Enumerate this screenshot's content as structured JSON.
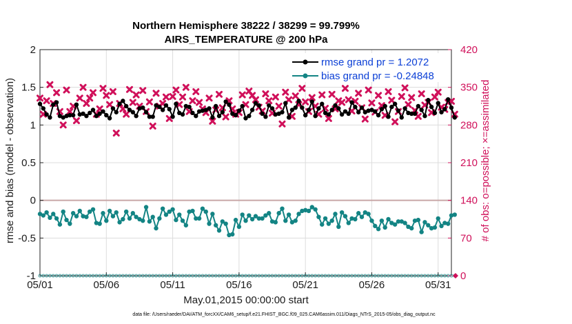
{
  "chart_data": {
    "type": "line",
    "title": "Northern Hemisphere 38222 / 38299 = 99.799%",
    "subtitle": "AIRS_TEMPERATURE @ 200 hPa",
    "xlabel": "May.01,2015 00:00:00 start",
    "ylabel": "rmse and bias (model - observation)",
    "y2label": "# of obs: o=possible; ×=assimilated",
    "x_ticklabels": [
      "05/01",
      "05/06",
      "05/11",
      "05/16",
      "05/21",
      "05/26",
      "05/31"
    ],
    "x_tick_days": [
      0,
      5,
      10,
      15,
      20,
      25,
      30
    ],
    "xlim": [
      0,
      31
    ],
    "ylim": [
      -1,
      2
    ],
    "y_ticklabels": [
      "2",
      "1.5",
      "1",
      "0.5",
      "0",
      "-0.5",
      "-1"
    ],
    "y2lim": [
      0,
      420
    ],
    "y2_ticklabels": [
      "420",
      "350",
      "280",
      "210",
      "140",
      "70",
      "0"
    ],
    "grid": true,
    "legend_position": "top-right",
    "footer": "data file: /Users/raeder/DAI/ATM_forcXX/CAM6_setup/f.e21.FHIST_BGC.f09_025.CAM6assim.011/Diags_NTrS_2015-05/obs_diag_output.nc",
    "series": [
      {
        "name": "rmse grand pr = 1.2072",
        "color": "#000000",
        "step_days": 0.25,
        "values": [
          1.28,
          1.22,
          1.14,
          1.1,
          1.27,
          1.3,
          1.12,
          1.1,
          1.12,
          1.13,
          1.13,
          1.27,
          1.14,
          1.15,
          1.12,
          1.16,
          1.2,
          1.12,
          1.15,
          1.18,
          1.13,
          1.09,
          1.22,
          1.17,
          1.28,
          1.32,
          1.25,
          1.2,
          1.17,
          1.12,
          1.22,
          1.23,
          1.17,
          1.11,
          1.11,
          1.26,
          1.24,
          1.2,
          1.26,
          1.21,
          1.11,
          1.28,
          1.16,
          1.14,
          1.25,
          1.24,
          1.16,
          1.12,
          1.18,
          1.19,
          1.2,
          1.22,
          1.1,
          1.25,
          1.12,
          1.17,
          1.31,
          1.27,
          1.15,
          1.13,
          1.19,
          1.25,
          1.09,
          1.12,
          1.2,
          1.29,
          1.26,
          1.15,
          1.11,
          1.26,
          1.22,
          1.14,
          1.15,
          1.17,
          1.29,
          1.1,
          1.2,
          1.23,
          1.32,
          1.23,
          1.13,
          1.2,
          1.31,
          1.12,
          1.22,
          1.28,
          1.16,
          1.14,
          1.2,
          1.26,
          1.22,
          1.14,
          1.18,
          1.15,
          1.3,
          1.24,
          1.17,
          1.23,
          1.17,
          1.19,
          1.2,
          1.18,
          1.13,
          1.21,
          1.25,
          1.11,
          1.24,
          1.28,
          1.19,
          1.1,
          1.22,
          1.16,
          1.15,
          1.15,
          1.25,
          1.2,
          1.12,
          1.33,
          1.24,
          1.16,
          1.29,
          1.17,
          1.21,
          1.34,
          1.23,
          1.1
        ]
      },
      {
        "name": "bias grand pr = -0.24848",
        "color": "#138484",
        "step_days": 0.25,
        "values": [
          -0.18,
          -0.2,
          -0.16,
          -0.23,
          -0.18,
          -0.24,
          -0.32,
          -0.15,
          -0.26,
          -0.31,
          -0.17,
          -0.21,
          -0.14,
          -0.21,
          -0.22,
          -0.15,
          -0.12,
          -0.3,
          -0.31,
          -0.17,
          -0.27,
          -0.14,
          -0.21,
          -0.16,
          -0.29,
          -0.25,
          -0.15,
          -0.24,
          -0.17,
          -0.22,
          -0.25,
          -0.27,
          -0.09,
          -0.28,
          -0.22,
          -0.37,
          -0.24,
          -0.11,
          -0.19,
          -0.15,
          -0.12,
          -0.26,
          -0.19,
          -0.27,
          -0.33,
          -0.15,
          -0.14,
          -0.24,
          -0.24,
          -0.11,
          -0.15,
          -0.31,
          -0.18,
          -0.33,
          -0.4,
          -0.28,
          -0.31,
          -0.46,
          -0.45,
          -0.26,
          -0.35,
          -0.19,
          -0.27,
          -0.2,
          -0.25,
          -0.21,
          -0.24,
          -0.24,
          -0.2,
          -0.17,
          -0.28,
          -0.29,
          -0.17,
          -0.11,
          -0.27,
          -0.19,
          -0.29,
          -0.27,
          -0.18,
          -0.14,
          -0.13,
          -0.14,
          -0.09,
          -0.12,
          -0.22,
          -0.32,
          -0.24,
          -0.31,
          -0.27,
          -0.18,
          -0.35,
          -0.16,
          -0.21,
          -0.3,
          -0.24,
          -0.25,
          -0.17,
          -0.22,
          -0.16,
          -0.18,
          -0.27,
          -0.34,
          -0.38,
          -0.27,
          -0.36,
          -0.25,
          -0.3,
          -0.32,
          -0.28,
          -0.28,
          -0.3,
          -0.35,
          -0.37,
          -0.27,
          -0.26,
          -0.42,
          -0.29,
          -0.33,
          -0.37,
          -0.36,
          -0.24,
          -0.34,
          -0.3,
          -0.31,
          -0.2,
          -0.19
        ]
      },
      {
        "name": "observations assimilated",
        "color": "#d0105a",
        "axis": "right",
        "step_days": 0.25,
        "values": [
          330,
          300,
          325,
          355,
          320,
          340,
          305,
          280,
          345,
          305,
          315,
          288,
          330,
          350,
          320,
          330,
          340,
          300,
          310,
          348,
          335,
          318,
          342,
          265,
          320,
          310,
          300,
          346,
          322,
          336,
          315,
          344,
          305,
          323,
          278,
          339,
          315,
          320,
          332,
          292,
          333,
          345,
          318,
          332,
          350,
          305,
          325,
          342,
          322,
          310,
          303,
          330,
          287,
          308,
          337,
          312,
          295,
          325,
          310,
          300,
          303,
          336,
          318,
          343,
          335,
          327,
          313,
          306,
          338,
          325,
          302,
          332,
          315,
          282,
          341,
          327,
          296,
          334,
          318,
          348,
          323,
          305,
          331,
          315,
          300,
          336,
          311,
          292,
          337,
          310,
          325,
          322,
          348,
          327,
          306,
          324,
          339,
          312,
          291,
          345,
          321,
          304,
          335,
          316,
          298,
          342,
          326,
          286,
          305,
          333,
          349,
          318,
          331,
          307,
          296,
          338,
          317,
          322,
          303,
          332,
          341,
          313,
          309,
          322,
          324,
          300
        ]
      },
      {
        "name": "observations possible",
        "color": "#138484",
        "axis": "right",
        "step_days": 0.25,
        "values": [
          0,
          0,
          0,
          0,
          0,
          0,
          0,
          0,
          0,
          0,
          0,
          0,
          0,
          0,
          0,
          0,
          0,
          0,
          0,
          0,
          0,
          0,
          0,
          0,
          0,
          0,
          0,
          0,
          0,
          0,
          0,
          0,
          0,
          0,
          0,
          0,
          0,
          0,
          0,
          0,
          0,
          0,
          0,
          0,
          0,
          0,
          0,
          0,
          0,
          0,
          0,
          0,
          0,
          0,
          0,
          0,
          0,
          0,
          0,
          0,
          0,
          0,
          0,
          0,
          0,
          0,
          0,
          0,
          0,
          0,
          0,
          0,
          0,
          0,
          0,
          0,
          0,
          0,
          0,
          0,
          0,
          0,
          0,
          0,
          0,
          0,
          0,
          0,
          0,
          0,
          0,
          0,
          0,
          0,
          0,
          0,
          0,
          0,
          0,
          0,
          0,
          0,
          0,
          0,
          0,
          0,
          0,
          0,
          0,
          0,
          0,
          0,
          0,
          0,
          0,
          0,
          0,
          0,
          0,
          0,
          0,
          0,
          0,
          0,
          0,
          0
        ]
      }
    ]
  }
}
